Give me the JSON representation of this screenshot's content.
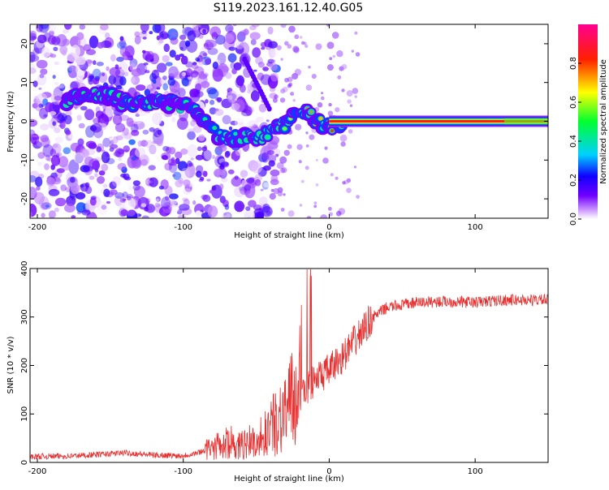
{
  "title": "S119.2023.161.12.40.G05",
  "chart_data": [
    {
      "type": "heatmap",
      "title": "S119.2023.161.12.40.G05",
      "xlabel": "Height of straight line (km)",
      "ylabel": "Frequency (Hz)",
      "xlim": [
        -205,
        150
      ],
      "ylim": [
        -25,
        25
      ],
      "x_ticks": [
        -200,
        -100,
        0,
        100
      ],
      "y_ticks": [
        -20,
        -10,
        0,
        10,
        20
      ],
      "colorbar": {
        "label": "Normalized spectral amplitude",
        "range": [
          0,
          1
        ],
        "ticks": [
          "0.0",
          "0.2",
          "0.4",
          "0.6",
          "0.8"
        ],
        "colors": [
          "#ffffff",
          "#b060ff",
          "#6000ff",
          "#0000ff",
          "#00e0ff",
          "#00ff40",
          "#ffff00",
          "#ff0000",
          "#ff00a0"
        ]
      },
      "ridge": [
        {
          "x": -175,
          "y": 6,
          "v": 0.45
        },
        {
          "x": -155,
          "y": 7,
          "v": 0.5
        },
        {
          "x": -140,
          "y": 5,
          "v": 0.5
        },
        {
          "x": -115,
          "y": 5,
          "v": 0.45
        },
        {
          "x": -100,
          "y": 4,
          "v": 0.5
        },
        {
          "x": -90,
          "y": 2,
          "v": 0.45
        },
        {
          "x": -80,
          "y": -2,
          "v": 0.45
        },
        {
          "x": -70,
          "y": -5,
          "v": 0.4
        },
        {
          "x": -60,
          "y": -4,
          "v": 0.45
        },
        {
          "x": -45,
          "y": -4,
          "v": 0.45
        },
        {
          "x": -35,
          "y": -2,
          "v": 0.5
        },
        {
          "x": -25,
          "y": 1,
          "v": 0.65
        },
        {
          "x": -15,
          "y": 2,
          "v": 0.75
        },
        {
          "x": -5,
          "y": -1,
          "v": 0.7
        },
        {
          "x": 5,
          "y": -1,
          "v": 0.85
        },
        {
          "x": 20,
          "y": 0,
          "v": 1.0
        },
        {
          "x": 60,
          "y": 0,
          "v": 1.0
        },
        {
          "x": 100,
          "y": 0,
          "v": 0.95
        },
        {
          "x": 125,
          "y": 0,
          "v": 0.8
        },
        {
          "x": 150,
          "y": 0.5,
          "v": 0.55
        }
      ]
    },
    {
      "type": "line",
      "xlabel": "Height of straight line (km)",
      "ylabel": "SNR (10 * v/v)",
      "xlim": [
        -205,
        150
      ],
      "ylim": [
        0,
        400
      ],
      "x_ticks": [
        -200,
        -100,
        0,
        100
      ],
      "y_ticks": [
        0,
        100,
        200,
        300,
        400
      ],
      "color": "#e83030",
      "x": [
        -205,
        -180,
        -160,
        -140,
        -120,
        -100,
        -90,
        -80,
        -70,
        -60,
        -50,
        -40,
        -30,
        -20,
        -10,
        0,
        10,
        20,
        30,
        40,
        50,
        60,
        80,
        100,
        120,
        150
      ],
      "y": [
        12,
        13,
        16,
        20,
        15,
        14,
        20,
        30,
        40,
        35,
        45,
        70,
        110,
        140,
        170,
        190,
        220,
        260,
        300,
        320,
        325,
        330,
        332,
        330,
        335,
        335
      ]
    }
  ]
}
